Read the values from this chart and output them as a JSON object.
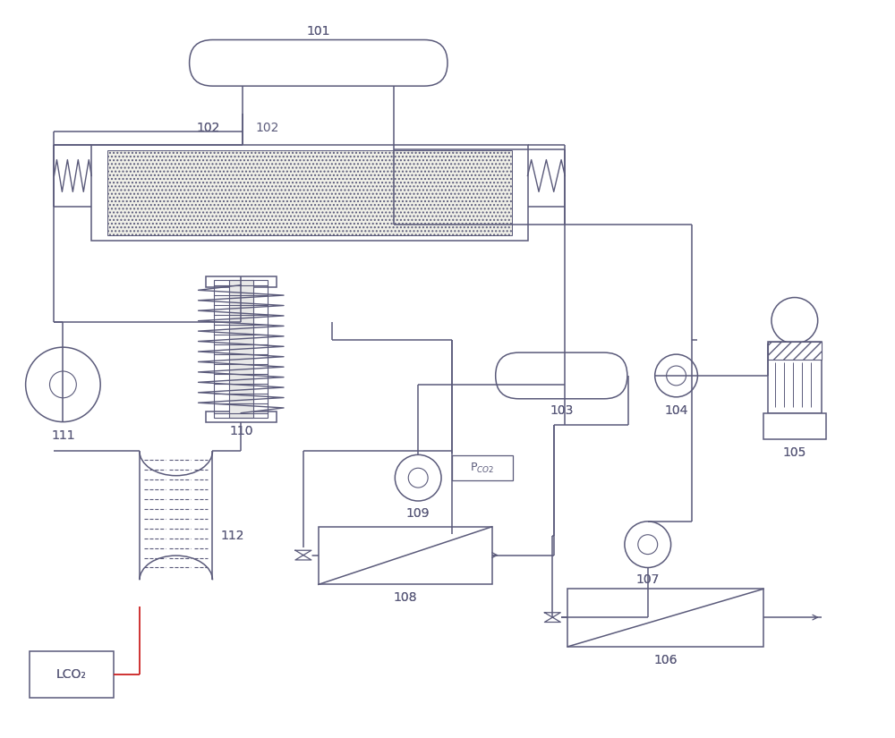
{
  "bg_color": "#ffffff",
  "lc": "#5a5a7a",
  "lw": 1.1,
  "fig_w": 10.0,
  "fig_h": 8.25
}
